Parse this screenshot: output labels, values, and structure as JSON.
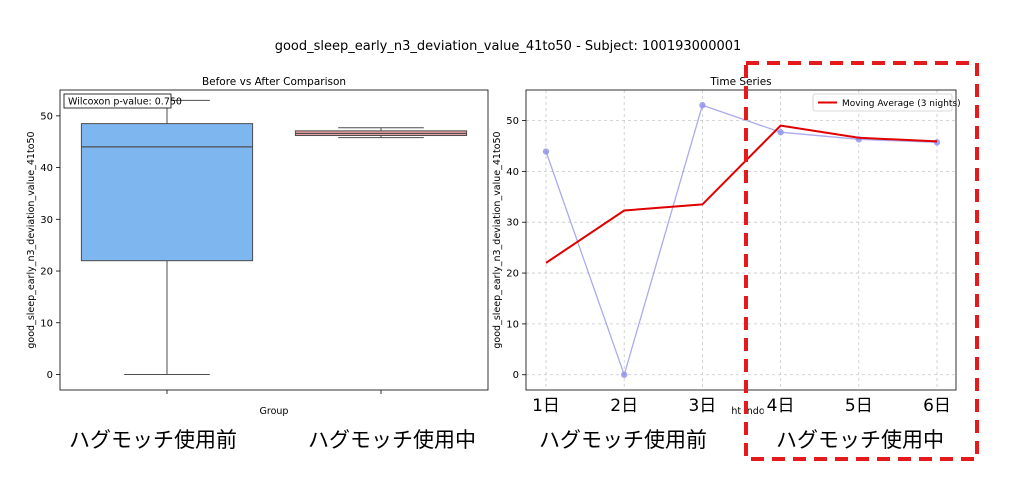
{
  "suptitle": "good_sleep_early_n3_deviation_value_41to50 - Subject: 100193000001",
  "colors": {
    "box_fill_before": "#7eb6f0",
    "box_fill_after": "#e8a0a0",
    "box_edge": "#4d4d4d",
    "moving_avg": "#e00000",
    "raw_series": "#8f8fe8",
    "dashed_box": "#e41a1c",
    "grid": "#c8c8c8"
  },
  "chart_data": [
    {
      "type": "box",
      "title": "Before vs After Comparison",
      "xlabel": "Group",
      "ylabel": "good_sleep_early_n3_deviation_value_41to50",
      "ylim": [
        -3,
        55
      ],
      "yticks": [
        0,
        10,
        20,
        30,
        40,
        50
      ],
      "annotation": "Wilcoxon p-value: 0.750",
      "groups": [
        {
          "label": "ハグモッチ使用前",
          "whisker_low": 0,
          "q1": 22.0,
          "median": 44.0,
          "q3": 48.5,
          "whisker_high": 53.0,
          "color": "#7eb6f0"
        },
        {
          "label": "ハグモッチ使用中",
          "whisker_low": 45.8,
          "q1": 46.2,
          "median": 46.6,
          "q3": 47.1,
          "whisker_high": 47.7,
          "color": "#e8a0a0"
        }
      ]
    },
    {
      "type": "line",
      "title": "Time Series",
      "ylabel": "good_sleep_early_n3_deviation_value_41to50",
      "xlabel_partial": "ht indo",
      "ylim": [
        -3,
        56
      ],
      "yticks": [
        0,
        10,
        20,
        30,
        40,
        50
      ],
      "grid": true,
      "legend_position": "top-right",
      "categories": [
        "1日",
        "2日",
        "3日",
        "4日",
        "5日",
        "6日"
      ],
      "series": [
        {
          "values": [
            43.9,
            0.0,
            53.0,
            47.7,
            46.3,
            45.7
          ],
          "color": "#8f8fe8",
          "marker": "circle"
        },
        {
          "name": "Moving Average (3 nights)",
          "values": [
            22.0,
            32.3,
            33.5,
            49.0,
            46.6,
            45.9
          ],
          "color": "#e00000"
        }
      ]
    }
  ],
  "group_captions": [
    {
      "text": "ハグモッチ使用前"
    },
    {
      "text": "ハグモッチ使用中"
    },
    {
      "text": "ハグモッチ使用前"
    },
    {
      "text": "ハグモッチ使用中"
    }
  ]
}
